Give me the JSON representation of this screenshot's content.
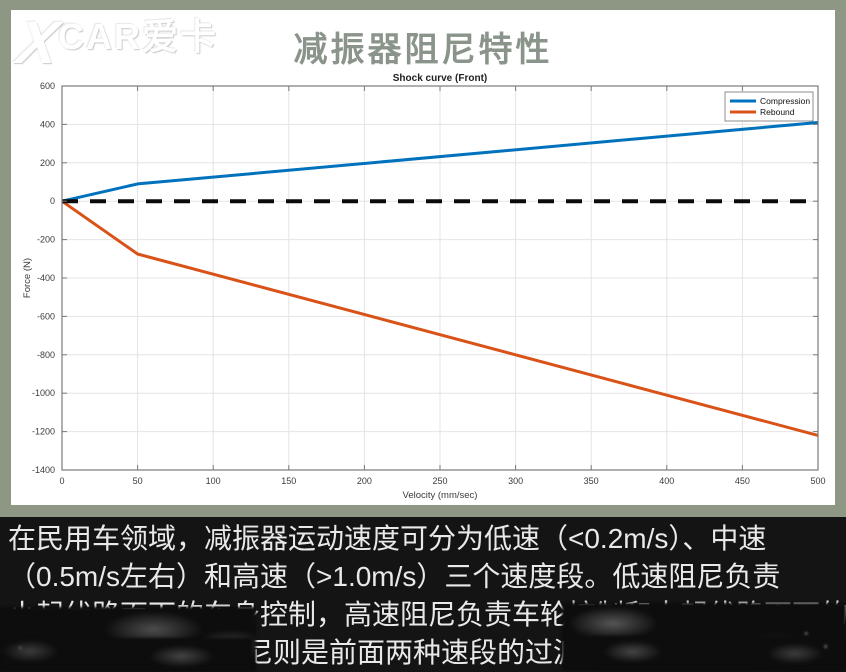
{
  "header": {
    "watermark_x": "X",
    "watermark_text": "CAR爱卡",
    "title": "减振器阻尼特性"
  },
  "chart_data": {
    "type": "line",
    "title": "Shock curve (Front)",
    "xlabel": "Velocity (mm/sec)",
    "ylabel": "Force (N)",
    "xlim": [
      0,
      500
    ],
    "ylim": [
      -1400,
      600
    ],
    "xticks": [
      0,
      50,
      100,
      150,
      200,
      250,
      300,
      350,
      400,
      450,
      500
    ],
    "yticks": [
      -1400,
      -1200,
      -1000,
      -800,
      -600,
      -400,
      -200,
      0,
      200,
      400,
      600
    ],
    "grid": true,
    "legend_position": "top-right",
    "series": [
      {
        "name": "Compression",
        "color": "#0072BD",
        "points": [
          [
            0,
            0
          ],
          [
            50,
            90
          ],
          [
            500,
            410
          ]
        ]
      },
      {
        "name": "Rebound",
        "color": "#D95319",
        "points": [
          [
            0,
            0
          ],
          [
            50,
            -275
          ],
          [
            500,
            -1220
          ]
        ]
      }
    ],
    "zero_line": {
      "y": 0,
      "style": "dashed",
      "color": "#0a0a0a"
    }
  },
  "caption": {
    "lines": [
      "在民用车领域，减振器运动速度可分为低速（<0.2m/s）、中速",
      "（0.5m/s左右）和高速（>1.0m/s）三个速度段。低速阻尼负责",
      "小起伏路面下的车身控制，高速阻尼负责车轮控制和大起伏路面下的",
      "尼则是前面两种速段的过渡"
    ]
  },
  "colors": {
    "frame": "#8d9784",
    "title_text": "#8a948a",
    "caption_bg": "#141414",
    "caption_text": "#e9e9e9",
    "compression": "#0072BD",
    "rebound": "#D95319",
    "grid": "#e4e4e4",
    "axis_box": "#7a7a7a"
  }
}
